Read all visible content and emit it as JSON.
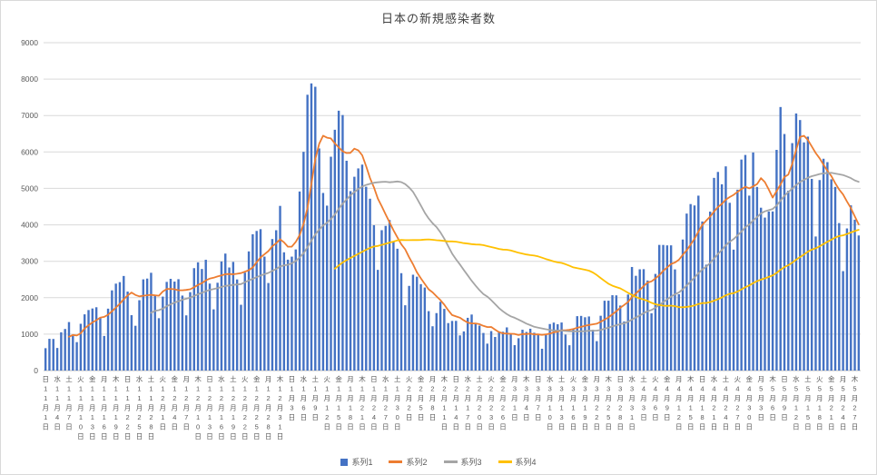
{
  "chart_data": {
    "type": "bar",
    "title": "日本の新規感染者数",
    "xlabel": "",
    "ylabel": "",
    "ylim": [
      0,
      9000
    ],
    "y_ticks": [
      0,
      1000,
      2000,
      3000,
      4000,
      5000,
      6000,
      7000,
      8000,
      9000
    ],
    "grid": true,
    "legend_position": "bottom",
    "x_tick_interval_days": 3,
    "x_ticks": [
      "日 11月1日",
      "水 11月4日",
      "土 11月7日",
      "火 11月10日",
      "金 11月13日",
      "月 11月16日",
      "木 11月19日",
      "日 11月22日",
      "水 11月25日",
      "土 11月28日",
      "火 12月1日",
      "金 12月4日",
      "月 12月7日",
      "木 12月10日",
      "日 12月13日",
      "水 12月16日",
      "土 12月19日",
      "火 12月22日",
      "金 12月25日",
      "月 12月28日",
      "木 12月31日",
      "日 1月3日",
      "水 1月6日",
      "土 1月9日",
      "火 1月12日",
      "金 1月15日",
      "月 1月18日",
      "木 1月21日",
      "日 1月24日",
      "水 1月27日",
      "土 1月30日",
      "火 2月2日",
      "金 2月5日",
      "月 2月8日",
      "木 2月11日",
      "日 2月14日",
      "水 2月17日",
      "土 2月20日",
      "火 2月23日",
      "金 2月26日",
      "月 3月1日",
      "木 3月4日",
      "日 3月7日",
      "水 3月10日",
      "土 3月13日",
      "火 3月16日",
      "金 3月19日",
      "月 3月22日",
      "木 3月25日",
      "日 3月28日",
      "水 3月31日",
      "土 4月3日",
      "火 4月6日",
      "金 4月9日",
      "月 4月12日",
      "木 4月15日",
      "日 4月18日",
      "水 4月21日",
      "土 4月24日",
      "火 4月27日",
      "金 4月30日",
      "月 5月3日",
      "木 5月6日",
      "日 5月9日",
      "水 5月12日",
      "土 5月15日",
      "火 5月18日",
      "金 5月21日",
      "月 5月24日",
      "木 5月27日"
    ],
    "x_range_note": "daily data 11月1日〜5月28日 (209 days), labels every 3 days",
    "series": [
      {
        "name": "系列1",
        "type": "bar",
        "color": "#4472c4",
        "values": [
          614,
          871,
          867,
          620,
          1050,
          1141,
          1331,
          955,
          780,
          1284,
          1543,
          1661,
          1704,
          1738,
          1441,
          950,
          1699,
          2201,
          2386,
          2427,
          2596,
          2168,
          1520,
          1229,
          1931,
          2503,
          2525,
          2684,
          2066,
          1437,
          2030,
          2434,
          2518,
          2442,
          2508,
          2058,
          1515,
          2152,
          2811,
          2971,
          2788,
          3041,
          2387,
          1680,
          2410,
          2994,
          3211,
          2829,
          2982,
          2501,
          1806,
          2688,
          3271,
          3742,
          3832,
          3881,
          3127,
          2403,
          3610,
          3852,
          4520,
          3246,
          3044,
          3127,
          3325,
          4915,
          6004,
          7571,
          7882,
          7790,
          6097,
          4875,
          4527,
          5870,
          6610,
          7133,
          7014,
          5759,
          4925,
          5320,
          5549,
          5653,
          5045,
          4717,
          3990,
          2764,
          3853,
          3971,
          4133,
          3539,
          3344,
          2673,
          1792,
          2324,
          2631,
          2576,
          2372,
          2279,
          1631,
          1216,
          1577,
          1887,
          1693,
          1303,
          1362,
          1364,
          965,
          1075,
          1448,
          1538,
          1301,
          1234,
          1032,
          739,
          1083,
          922,
          1075,
          1065,
          1185,
          999,
          697,
          888,
          1121,
          1059,
          1148,
          1038,
          1001,
          599,
          974,
          1277,
          1316,
          1271,
          1319,
          988,
          695,
          1133,
          1493,
          1500,
          1463,
          1485,
          1120,
          807,
          1504,
          1917,
          1918,
          2068,
          2064,
          1785,
          1348,
          2087,
          2843,
          2601,
          2779,
          2783,
          2472,
          1571,
          2653,
          3449,
          3448,
          3436,
          3437,
          2777,
          2095,
          3597,
          4309,
          4570,
          4532,
          4801,
          4093,
          2907,
          4364,
          5289,
          5452,
          5113,
          5605,
          4605,
          3319,
          4965,
          5792,
          5918,
          4802,
          5986,
          5040,
          4470,
          4199,
          4366,
          4367,
          6058,
          7234,
          6493,
          4938,
          6243,
          7057,
          6877,
          6263,
          6421,
          5261,
          3680,
          5229,
          5814,
          5721,
          5250,
          5040,
          4048,
          2729,
          3901,
          4536,
          4142,
          3708
        ]
      },
      {
        "name": "系列2",
        "type": "line",
        "color": "#ed7d31",
        "derived": "moving_average_of_series1",
        "window": 7
      },
      {
        "name": "系列3",
        "type": "line",
        "color": "#a5a5a5",
        "derived": "moving_average_of_series1",
        "window": 28
      },
      {
        "name": "系列4",
        "type": "line",
        "color": "#ffc000",
        "derived": "moving_average_of_series1",
        "window": 75
      }
    ],
    "axis_text_color": "#595959",
    "gridline_color": "#d9d9d9"
  }
}
